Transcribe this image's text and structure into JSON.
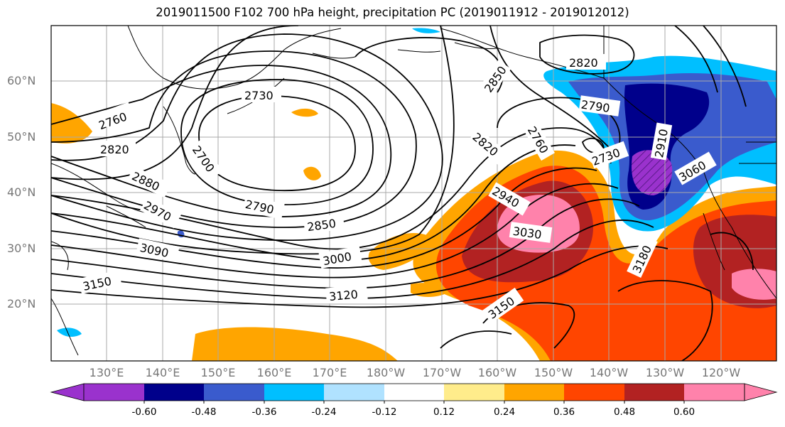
{
  "title": "2019011500 F102 700 hPa height, precipitation PC (2019011912 - 2019012012)",
  "lat_labels": [
    "60°N",
    "50°N",
    "40°N",
    "30°N",
    "20°N"
  ],
  "lon_labels": [
    "130°E",
    "140°E",
    "150°E",
    "160°E",
    "170°E",
    "180°W",
    "170°W",
    "160°W",
    "150°W",
    "140°W",
    "130°W",
    "120°W"
  ],
  "colorbar": {
    "ticks": [
      "-0.60",
      "-0.48",
      "-0.36",
      "-0.24",
      "-0.12",
      "0.12",
      "0.24",
      "0.36",
      "0.48",
      "0.60"
    ],
    "colors": [
      "#9a32cd",
      "#00008b",
      "#3a5bcd",
      "#00bfff",
      "#b0e2ff",
      "#ffffff",
      "#ffec8b",
      "#ffa500",
      "#ff4500",
      "#b22222",
      "#ff82ab"
    ]
  },
  "contour_labels": [
    "2730",
    "2760",
    "2790",
    "2820",
    "2850",
    "2880",
    "2940",
    "2970",
    "3000",
    "3030",
    "3060",
    "3090",
    "3120",
    "3150",
    "3180",
    "2700",
    "2910"
  ]
}
